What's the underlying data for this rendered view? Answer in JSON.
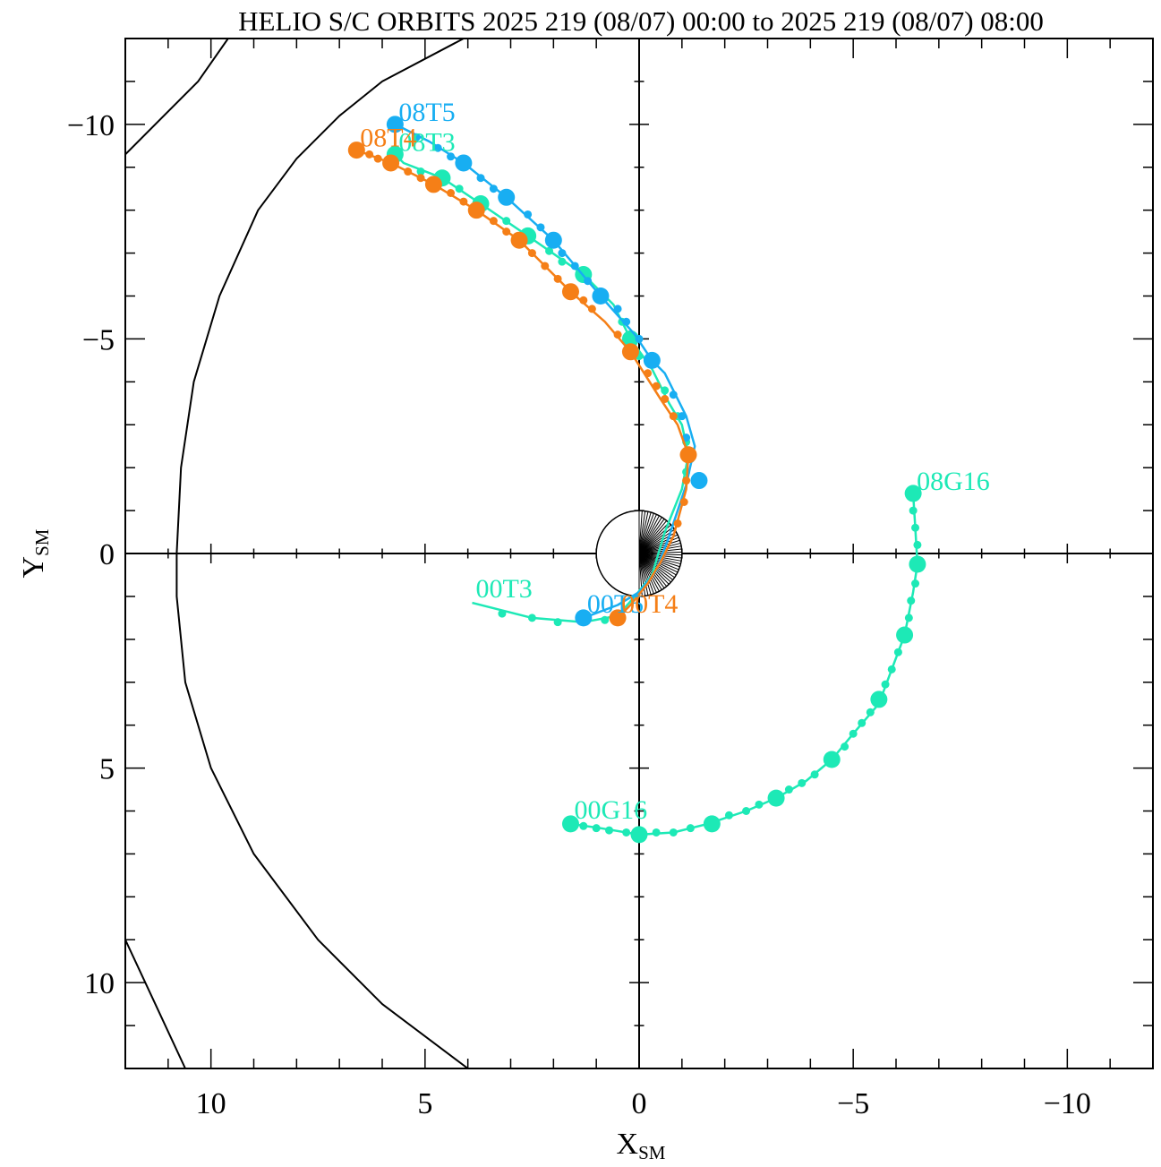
{
  "chart_data": {
    "type": "scatter",
    "title": "HELIO S/C ORBITS 2025 219 (08/07) 00:00 to 2025 219 (08/07) 08:00",
    "xlabel": {
      "main": "X",
      "sub": "SM"
    },
    "ylabel": {
      "main": "Y",
      "sub": "SM"
    },
    "xlim": [
      12.0,
      -12.0
    ],
    "ylim": [
      -12.0,
      12.0
    ],
    "x_ticks": [
      10,
      5,
      0,
      -5,
      -10
    ],
    "x_tick_labels": [
      "10",
      "5",
      "0",
      "−5",
      "−10"
    ],
    "y_ticks": [
      -10,
      -5,
      0,
      5,
      10
    ],
    "y_tick_labels": [
      "−10",
      "−5",
      "0",
      "5",
      "10"
    ],
    "minor_tick_step": 1,
    "grid": false,
    "legend": "none",
    "earth": {
      "radius": 1.0
    },
    "series": [
      {
        "name": "T3",
        "color": "#1de9b6",
        "start_label": "00T3",
        "end_label": "08T3",
        "points": [
          [
            3.9,
            1.15
          ],
          [
            2.5,
            1.5
          ],
          [
            1.3,
            1.6
          ],
          [
            0.5,
            1.45
          ],
          [
            0.1,
            1.0
          ],
          [
            -0.3,
            0.5
          ],
          [
            -0.6,
            -0.5
          ],
          [
            -1.0,
            -1.5
          ],
          [
            -1.15,
            -2.3
          ],
          [
            -1.0,
            -3.0
          ],
          [
            -0.7,
            -3.5
          ],
          [
            -0.3,
            -4.3
          ],
          [
            0.2,
            -5.0
          ],
          [
            0.6,
            -5.8
          ],
          [
            1.3,
            -6.5
          ],
          [
            2.6,
            -7.4
          ],
          [
            3.7,
            -8.15
          ],
          [
            4.6,
            -8.75
          ],
          [
            5.5,
            -9.1
          ],
          [
            5.7,
            -9.3
          ]
        ],
        "large_markers": [
          [
            0.2,
            -5.0
          ],
          [
            1.3,
            -6.5
          ],
          [
            2.6,
            -7.4
          ],
          [
            3.7,
            -8.15
          ],
          [
            4.6,
            -8.75
          ],
          [
            5.7,
            -9.3
          ]
        ],
        "small_markers": [
          [
            3.2,
            1.4
          ],
          [
            2.5,
            1.5
          ],
          [
            1.9,
            1.6
          ],
          [
            1.3,
            1.6
          ],
          [
            0.8,
            1.55
          ],
          [
            0.5,
            1.45
          ],
          [
            -1.1,
            -1.9
          ],
          [
            -1.1,
            -2.6
          ],
          [
            -0.9,
            -3.2
          ],
          [
            -0.6,
            -3.8
          ],
          [
            0.0,
            -4.6
          ],
          [
            0.4,
            -5.4
          ],
          [
            0.9,
            -6.1
          ],
          [
            1.8,
            -6.8
          ],
          [
            2.1,
            -7.05
          ],
          [
            3.1,
            -7.75
          ],
          [
            4.2,
            -8.5
          ],
          [
            5.1,
            -8.9
          ]
        ]
      },
      {
        "name": "T5",
        "color": "#18aef2",
        "start_label": "00T5",
        "end_label": "08T5",
        "points": [
          [
            1.3,
            1.5
          ],
          [
            0.5,
            1.2
          ],
          [
            0.0,
            0.9
          ],
          [
            -0.4,
            0.4
          ],
          [
            -0.7,
            -0.4
          ],
          [
            -1.1,
            -1.6
          ],
          [
            -1.3,
            -2.5
          ],
          [
            -1.1,
            -3.2
          ],
          [
            -0.6,
            -4.2
          ],
          [
            -0.3,
            -4.5
          ],
          [
            0.1,
            -5.1
          ],
          [
            0.9,
            -6.0
          ],
          [
            2.0,
            -7.3
          ],
          [
            3.1,
            -8.3
          ],
          [
            4.1,
            -9.1
          ],
          [
            4.9,
            -9.6
          ],
          [
            5.7,
            -10.0
          ]
        ],
        "large_markers": [
          [
            1.3,
            1.5
          ],
          [
            -1.4,
            -1.7
          ],
          [
            -0.3,
            -4.5
          ],
          [
            0.9,
            -6.0
          ],
          [
            2.0,
            -7.3
          ],
          [
            3.1,
            -8.3
          ],
          [
            4.1,
            -9.1
          ],
          [
            5.7,
            -10.0
          ]
        ],
        "small_markers": [
          [
            -1.2,
            -2.2
          ],
          [
            -1.1,
            -2.7
          ],
          [
            -1.0,
            -3.2
          ],
          [
            -0.8,
            -3.7
          ],
          [
            0.0,
            -5.0
          ],
          [
            0.3,
            -5.4
          ],
          [
            0.5,
            -5.7
          ],
          [
            1.2,
            -6.35
          ],
          [
            1.5,
            -6.7
          ],
          [
            1.8,
            -7.0
          ],
          [
            2.3,
            -7.6
          ],
          [
            2.6,
            -7.9
          ],
          [
            3.4,
            -8.5
          ],
          [
            3.7,
            -8.75
          ],
          [
            4.4,
            -9.25
          ],
          [
            4.7,
            -9.45
          ],
          [
            5.2,
            -9.7
          ]
        ]
      },
      {
        "name": "T4",
        "color": "#f57f17",
        "start_label": "00T4",
        "end_label": "08T4",
        "points": [
          [
            0.5,
            1.5
          ],
          [
            0.2,
            1.2
          ],
          [
            -0.2,
            0.7
          ],
          [
            -0.5,
            0.2
          ],
          [
            -0.8,
            -0.4
          ],
          [
            -1.1,
            -1.5
          ],
          [
            -1.15,
            -2.3
          ],
          [
            -0.9,
            -3.0
          ],
          [
            -0.5,
            -3.6
          ],
          [
            0.2,
            -4.7
          ],
          [
            0.8,
            -5.4
          ],
          [
            1.6,
            -6.1
          ],
          [
            2.8,
            -7.3
          ],
          [
            3.8,
            -8.0
          ],
          [
            4.8,
            -8.6
          ],
          [
            5.8,
            -9.1
          ],
          [
            6.6,
            -9.4
          ]
        ],
        "large_markers": [
          [
            0.5,
            1.5
          ],
          [
            -1.15,
            -2.3
          ],
          [
            0.2,
            -4.7
          ],
          [
            1.6,
            -6.1
          ],
          [
            2.8,
            -7.3
          ],
          [
            3.8,
            -8.0
          ],
          [
            4.8,
            -8.6
          ],
          [
            5.8,
            -9.1
          ],
          [
            6.6,
            -9.4
          ]
        ],
        "small_markers": [
          [
            -0.9,
            -0.7
          ],
          [
            -1.05,
            -1.2
          ],
          [
            -1.1,
            -1.7
          ],
          [
            -0.8,
            -3.2
          ],
          [
            -0.6,
            -3.6
          ],
          [
            -0.4,
            -3.9
          ],
          [
            -0.2,
            -4.2
          ],
          [
            0.5,
            -5.1
          ],
          [
            1.1,
            -5.7
          ],
          [
            1.3,
            -5.9
          ],
          [
            1.9,
            -6.4
          ],
          [
            2.2,
            -6.7
          ],
          [
            2.5,
            -7.0
          ],
          [
            3.1,
            -7.5
          ],
          [
            3.4,
            -7.75
          ],
          [
            4.1,
            -8.2
          ],
          [
            4.4,
            -8.4
          ],
          [
            5.1,
            -8.75
          ],
          [
            5.4,
            -8.9
          ],
          [
            6.1,
            -9.2
          ],
          [
            6.3,
            -9.3
          ]
        ]
      },
      {
        "name": "G16",
        "color": "#1de9b6",
        "start_label": "00G16",
        "end_label": "08G16",
        "points": [
          [
            1.6,
            6.3
          ],
          [
            0.9,
            6.4
          ],
          [
            0.0,
            6.55
          ],
          [
            -0.8,
            6.5
          ],
          [
            -1.6,
            6.3
          ],
          [
            -2.5,
            6.0
          ],
          [
            -3.2,
            5.7
          ],
          [
            -3.9,
            5.3
          ],
          [
            -4.5,
            4.8
          ],
          [
            -5.0,
            4.2
          ],
          [
            -5.6,
            3.5
          ],
          [
            -5.9,
            2.7
          ],
          [
            -6.2,
            1.9
          ],
          [
            -6.4,
            0.9
          ],
          [
            -6.5,
            0.25
          ],
          [
            -6.45,
            -0.6
          ],
          [
            -6.4,
            -1.4
          ]
        ],
        "large_markers": [
          [
            1.6,
            6.3
          ],
          [
            0.0,
            6.55
          ],
          [
            -1.7,
            6.3
          ],
          [
            -3.2,
            5.7
          ],
          [
            -4.5,
            4.8
          ],
          [
            -5.6,
            3.4
          ],
          [
            -6.2,
            1.9
          ],
          [
            -6.5,
            0.25
          ],
          [
            -6.4,
            -1.4
          ]
        ],
        "small_markers": [
          [
            1.3,
            6.35
          ],
          [
            1.0,
            6.4
          ],
          [
            0.7,
            6.45
          ],
          [
            0.3,
            6.5
          ],
          [
            -0.4,
            6.5
          ],
          [
            -0.8,
            6.5
          ],
          [
            -1.2,
            6.4
          ],
          [
            -2.1,
            6.1
          ],
          [
            -2.5,
            6.0
          ],
          [
            -2.8,
            5.85
          ],
          [
            -3.5,
            5.5
          ],
          [
            -3.8,
            5.35
          ],
          [
            -4.1,
            5.15
          ],
          [
            -4.8,
            4.5
          ],
          [
            -5.0,
            4.2
          ],
          [
            -5.2,
            3.95
          ],
          [
            -5.4,
            3.7
          ],
          [
            -5.75,
            3.05
          ],
          [
            -5.9,
            2.7
          ],
          [
            -6.05,
            2.3
          ],
          [
            -6.3,
            1.5
          ],
          [
            -6.35,
            1.1
          ],
          [
            -6.45,
            0.7
          ],
          [
            -6.5,
            -0.2
          ],
          [
            -6.45,
            -0.6
          ],
          [
            -6.4,
            -1.0
          ]
        ]
      }
    ],
    "boundary_curves": [
      {
        "name": "outer-boundary",
        "points": [
          [
            12.0,
            -9.3
          ],
          [
            10.3,
            -11.0
          ],
          [
            9.6,
            -12.0
          ]
        ]
      },
      {
        "name": "magnetopause",
        "points": [
          [
            4.0,
            12.0
          ],
          [
            6.0,
            10.5
          ],
          [
            7.5,
            9.0
          ],
          [
            9.0,
            7.0
          ],
          [
            10.0,
            5.0
          ],
          [
            10.6,
            3.0
          ],
          [
            10.8,
            1.0
          ],
          [
            10.8,
            0.0
          ],
          [
            10.7,
            -2.0
          ],
          [
            10.4,
            -4.0
          ],
          [
            9.8,
            -6.0
          ],
          [
            8.9,
            -8.0
          ],
          [
            8.0,
            -9.2
          ],
          [
            7.0,
            -10.2
          ],
          [
            6.0,
            -11.0
          ],
          [
            4.1,
            -12.0
          ]
        ]
      },
      {
        "name": "lower-boundary",
        "points": [
          [
            12.0,
            9.0
          ],
          [
            11.3,
            10.5
          ],
          [
            10.6,
            12.0
          ]
        ]
      }
    ]
  }
}
